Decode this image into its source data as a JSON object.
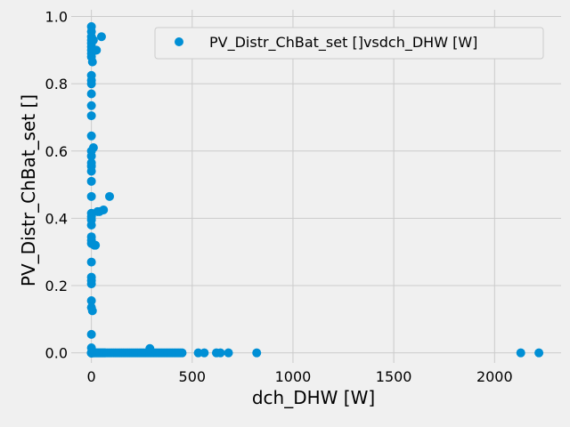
{
  "chart_data": {
    "type": "scatter",
    "title": "",
    "xlabel": "dch_DHW [W]",
    "ylabel": "PV_Distr_ChBat_set []",
    "xlim": [
      -100,
      2330
    ],
    "ylim": [
      -0.03,
      1.02
    ],
    "xticks": [
      0,
      500,
      1000,
      1500,
      2000
    ],
    "yticks": [
      0.0,
      0.2,
      0.4,
      0.6,
      0.8,
      1.0
    ],
    "grid": true,
    "legend_position": "top-right",
    "color": "#008fd5",
    "series": [
      {
        "name": "PV_Distr_ChBat_set []vsdch_DHW [W]",
        "x": [
          0,
          0,
          0,
          0,
          0,
          0,
          0,
          0,
          0,
          0,
          0,
          0,
          0,
          0,
          0,
          0,
          0,
          0,
          0,
          0,
          0,
          0,
          0,
          0,
          0,
          0,
          0,
          0,
          0,
          0,
          0,
          0,
          0,
          0,
          0,
          0,
          0,
          0,
          0,
          0,
          0,
          0,
          0,
          0,
          0,
          0,
          0,
          0,
          0,
          0,
          5,
          8,
          10,
          15,
          20,
          25,
          30,
          35,
          40,
          45,
          50,
          55,
          60,
          65,
          70,
          80,
          90,
          100,
          110,
          120,
          130,
          140,
          150,
          160,
          170,
          180,
          190,
          200,
          210,
          220,
          230,
          240,
          250,
          260,
          270,
          280,
          290,
          300,
          310,
          320,
          330,
          340,
          350,
          360,
          370,
          380,
          390,
          400,
          410,
          420,
          430,
          440,
          450,
          530,
          560,
          620,
          640,
          680,
          820,
          2130,
          2220,
          10,
          15,
          20,
          25,
          30,
          40,
          50,
          60,
          90,
          290,
          5,
          10,
          15,
          20,
          5
        ],
        "y": [
          0.97,
          0.955,
          0.94,
          0.93,
          0.92,
          0.91,
          0.9,
          0.89,
          0.88,
          0.825,
          0.81,
          0.8,
          0.77,
          0.735,
          0.705,
          0.645,
          0.6,
          0.585,
          0.565,
          0.555,
          0.54,
          0.51,
          0.465,
          0.415,
          0.405,
          0.395,
          0.38,
          0.345,
          0.335,
          0.325,
          0.27,
          0.225,
          0.215,
          0.205,
          0.155,
          0.135,
          0.055,
          0.015,
          0.0,
          0.0,
          0.0,
          0.0,
          0.0,
          0.0,
          0.0,
          0.0,
          0.0,
          0.0,
          0.0,
          0.0,
          0.0,
          0.0,
          0.0,
          0.0,
          0.0,
          0.0,
          0.0,
          0.0,
          0.0,
          0.0,
          0.0,
          0.0,
          0.0,
          0.0,
          0.0,
          0.0,
          0.0,
          0.0,
          0.0,
          0.0,
          0.0,
          0.0,
          0.0,
          0.0,
          0.0,
          0.0,
          0.0,
          0.0,
          0.0,
          0.0,
          0.0,
          0.0,
          0.0,
          0.0,
          0.0,
          0.0,
          0.0,
          0.0,
          0.0,
          0.0,
          0.0,
          0.0,
          0.0,
          0.0,
          0.0,
          0.0,
          0.0,
          0.0,
          0.0,
          0.0,
          0.0,
          0.0,
          0.0,
          0.0,
          0.0,
          0.0,
          0.0,
          0.0,
          0.0,
          0.0,
          0.0,
          0.93,
          0.9,
          0.9,
          0.9,
          0.42,
          0.42,
          0.94,
          0.425,
          0.465,
          0.013,
          0.125,
          0.61,
          0.32,
          0.32,
          0.865
        ]
      }
    ]
  }
}
